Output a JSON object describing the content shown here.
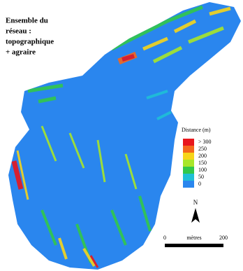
{
  "title": [
    "Ensemble du",
    "réseau :",
    "topographique",
    "+ agraire"
  ],
  "legend": {
    "title": "Distance (m)",
    "items": [
      {
        "label": "> 300",
        "color": "#e8161c"
      },
      {
        "label": "250",
        "color": "#f4681c"
      },
      {
        "label": "200",
        "color": "#f7d51a"
      },
      {
        "label": "150",
        "color": "#a8e62a"
      },
      {
        "label": "100",
        "color": "#32c84a"
      },
      {
        "label": "50",
        "color": "#1fc0d6"
      },
      {
        "label": "0",
        "color": "#2a86ee"
      }
    ]
  },
  "north": "N",
  "scale": {
    "start": "0",
    "unit": "mètres",
    "end": "200"
  }
}
